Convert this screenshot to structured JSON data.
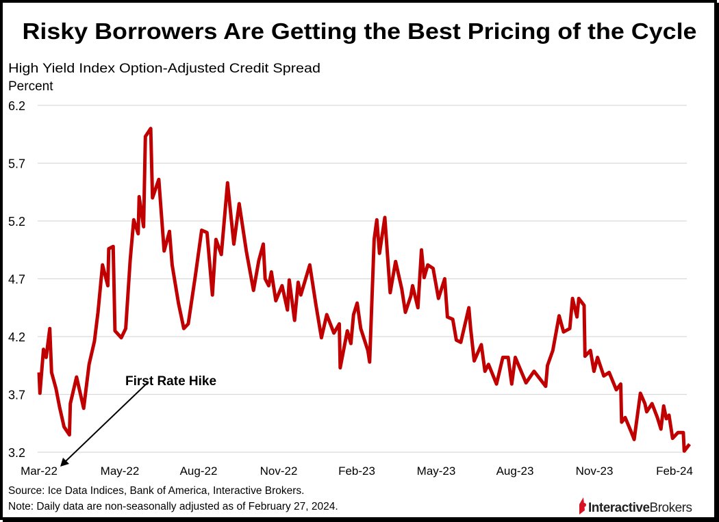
{
  "chart_data": {
    "type": "line",
    "title": "Risky Borrowers Are Getting the Best Pricing of the Cycle",
    "subtitle": "High Yield Index Option-Adjusted Credit Spread",
    "ylabel": "Percent",
    "ylim": [
      3.2,
      6.2
    ],
    "yticks": [
      "6.2",
      "5.7",
      "5.2",
      "4.7",
      "4.2",
      "3.7",
      "3.2"
    ],
    "xticks": [
      "Mar-22",
      "May-22",
      "Aug-22",
      "Nov-22",
      "Feb-23",
      "May-23",
      "Aug-23",
      "Nov-23",
      "Feb-24"
    ],
    "grid": "horizontal",
    "color": "#c00000",
    "annotation": "First Rate Hike",
    "series": [
      {
        "x": [
          "2022-03-01",
          "2022-03-02",
          "2022-03-06",
          "2022-03-09",
          "2022-03-13",
          "2022-03-15",
          "2022-03-20",
          "2022-03-24",
          "2022-03-29",
          "2022-04-04",
          "2022-04-05",
          "2022-04-12",
          "2022-04-20",
          "2022-04-26",
          "2022-05-02",
          "2022-05-06",
          "2022-05-11",
          "2022-05-17",
          "2022-05-18",
          "2022-05-23",
          "2022-05-25",
          "2022-06-01",
          "2022-06-06",
          "2022-06-11",
          "2022-06-15",
          "2022-06-20",
          "2022-06-21",
          "2022-06-26",
          "2022-06-28",
          "2022-07-04",
          "2022-07-06",
          "2022-07-13",
          "2022-07-19",
          "2022-07-25",
          "2022-07-28",
          "2022-08-04",
          "2022-08-10",
          "2022-08-15",
          "2022-08-23",
          "2022-08-30",
          "2022-09-05",
          "2022-09-11",
          "2022-09-15",
          "2022-09-21",
          "2022-09-28",
          "2022-10-05",
          "2022-10-11",
          "2022-10-19",
          "2022-10-27",
          "2022-11-02",
          "2022-11-07",
          "2022-11-09",
          "2022-11-13",
          "2022-11-16",
          "2022-11-21",
          "2022-11-28",
          "2022-12-04",
          "2022-12-06",
          "2022-12-12",
          "2022-12-16",
          "2022-12-19",
          "2022-12-29",
          "2023-01-05",
          "2023-01-11",
          "2023-01-17",
          "2023-01-25",
          "2023-01-31",
          "2023-02-01",
          "2023-02-09",
          "2023-02-13",
          "2023-02-16",
          "2023-02-20",
          "2023-02-24",
          "2023-03-04",
          "2023-03-06",
          "2023-03-11",
          "2023-03-14",
          "2023-03-17",
          "2023-03-23",
          "2023-03-29",
          "2023-04-04",
          "2023-04-11",
          "2023-04-15",
          "2023-04-21",
          "2023-04-23",
          "2023-04-29",
          "2023-05-03",
          "2023-05-06",
          "2023-05-10",
          "2023-05-16",
          "2023-05-22",
          "2023-05-29",
          "2023-06-01",
          "2023-06-07",
          "2023-06-11",
          "2023-06-16",
          "2023-06-25",
          "2023-06-27",
          "2023-07-01",
          "2023-07-09",
          "2023-07-13",
          "2023-07-17",
          "2023-07-26",
          "2023-08-02",
          "2023-08-08",
          "2023-08-12",
          "2023-08-16",
          "2023-08-28",
          "2023-09-06",
          "2023-09-19",
          "2023-09-21",
          "2023-09-27",
          "2023-10-04",
          "2023-10-09",
          "2023-10-16",
          "2023-10-19",
          "2023-10-24",
          "2023-10-26",
          "2023-11-01",
          "2023-11-02",
          "2023-11-08",
          "2023-11-12",
          "2023-11-16",
          "2023-11-23",
          "2023-11-29",
          "2023-12-07",
          "2023-12-12",
          "2023-12-13",
          "2023-12-17",
          "2023-12-24",
          "2023-12-27",
          "2024-01-03",
          "2024-01-08",
          "2024-01-10",
          "2024-01-16",
          "2024-01-22",
          "2024-01-26",
          "2024-01-29",
          "2024-02-01",
          "2024-02-04",
          "2024-02-08",
          "2024-02-14",
          "2024-02-20",
          "2024-02-21",
          "2024-02-27"
        ],
        "y": [
          3.89,
          3.71,
          4.09,
          4.02,
          4.27,
          3.89,
          3.75,
          3.59,
          3.42,
          3.35,
          3.62,
          3.85,
          3.58,
          3.96,
          4.16,
          4.41,
          4.82,
          4.64,
          4.96,
          4.98,
          4.25,
          4.19,
          4.27,
          4.86,
          5.21,
          5.09,
          5.41,
          5.15,
          5.93,
          6.0,
          5.4,
          5.56,
          4.94,
          5.11,
          4.82,
          4.49,
          4.27,
          4.31,
          4.73,
          5.12,
          5.1,
          4.56,
          5.04,
          4.91,
          5.53,
          5.0,
          5.35,
          4.94,
          4.6,
          4.86,
          5.0,
          4.7,
          4.64,
          4.76,
          4.51,
          4.64,
          4.43,
          4.69,
          4.34,
          4.67,
          4.56,
          4.82,
          4.47,
          4.19,
          4.39,
          4.23,
          4.31,
          3.93,
          4.25,
          4.14,
          4.39,
          4.49,
          4.27,
          4.08,
          3.98,
          5.04,
          5.21,
          4.92,
          5.23,
          4.58,
          4.85,
          4.61,
          4.41,
          4.55,
          4.64,
          4.45,
          4.95,
          4.71,
          4.82,
          4.79,
          4.53,
          4.7,
          4.37,
          4.35,
          4.17,
          4.15,
          4.45,
          4.27,
          3.99,
          4.13,
          3.9,
          3.96,
          3.79,
          4.02,
          4.02,
          3.79,
          4.02,
          3.8,
          3.9,
          3.77,
          3.95,
          4.08,
          4.38,
          4.24,
          4.27,
          4.53,
          4.37,
          4.53,
          4.47,
          4.03,
          4.08,
          3.9,
          4.02,
          3.86,
          3.89,
          3.74,
          3.79,
          3.46,
          3.5,
          3.37,
          3.31,
          3.71,
          3.62,
          3.55,
          3.62,
          3.5,
          3.4,
          3.6,
          3.49,
          3.52,
          3.32,
          3.37,
          3.37,
          3.21,
          3.27
        ]
      }
    ]
  },
  "footer": {
    "source": "Source: Ice Data Indices, Bank of America, Interactive Brokers.",
    "note": "Note: Daily data are non-seasonally adjusted as of February 27, 2024."
  },
  "logo": {
    "text_bold": "Interactive",
    "text_regular": "Brokers",
    "color": "#d81222"
  }
}
